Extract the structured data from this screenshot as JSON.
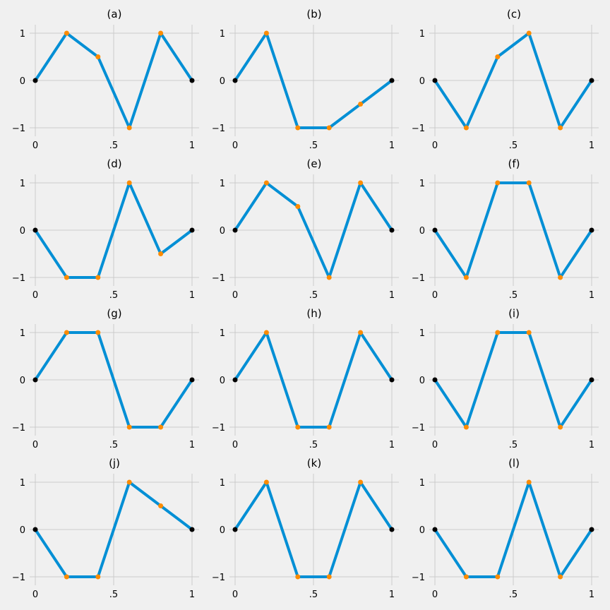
{
  "figure": {
    "background_color": "#f0f0f0",
    "grid_color": "#cbcbcb",
    "line_color": "#008fd5",
    "endpoint_marker_color": "#000000",
    "interior_marker_color": "#fc8b00"
  },
  "chart_data": [
    {
      "type": "line",
      "title": "(a)",
      "x": [
        0,
        0.2,
        0.4,
        0.6,
        0.8,
        1
      ],
      "y": [
        0,
        1,
        0.5,
        -1,
        1,
        0
      ],
      "xticks": [
        0,
        0.5,
        1
      ],
      "xtick_labels": [
        "0",
        ".5",
        "1"
      ],
      "yticks": [
        -1,
        0,
        1
      ],
      "ytick_labels": [
        "−1",
        "0",
        "1"
      ],
      "xlim": [
        -0.05,
        1.05
      ],
      "ylim": [
        -1.2,
        1.2
      ],
      "grid": true,
      "legend": "none"
    },
    {
      "type": "line",
      "title": "(b)",
      "x": [
        0,
        0.2,
        0.4,
        0.6,
        0.8,
        1
      ],
      "y": [
        0,
        1,
        -1,
        -1,
        -0.5,
        0
      ],
      "xticks": [
        0,
        0.5,
        1
      ],
      "xtick_labels": [
        "0",
        ".5",
        "1"
      ],
      "yticks": [
        -1,
        0,
        1
      ],
      "ytick_labels": [
        "−1",
        "0",
        "1"
      ],
      "xlim": [
        -0.05,
        1.05
      ],
      "ylim": [
        -1.2,
        1.2
      ],
      "grid": true,
      "legend": "none"
    },
    {
      "type": "line",
      "title": "(c)",
      "x": [
        0,
        0.2,
        0.4,
        0.6,
        0.8,
        1
      ],
      "y": [
        0,
        -1,
        0.5,
        1,
        -1,
        0
      ],
      "xticks": [
        0,
        0.5,
        1
      ],
      "xtick_labels": [
        "0",
        ".5",
        "1"
      ],
      "yticks": [
        -1,
        0,
        1
      ],
      "ytick_labels": [
        "−1",
        "0",
        "1"
      ],
      "xlim": [
        -0.05,
        1.05
      ],
      "ylim": [
        -1.2,
        1.2
      ],
      "grid": true,
      "legend": "none"
    },
    {
      "type": "line",
      "title": "(d)",
      "x": [
        0,
        0.2,
        0.4,
        0.6,
        0.8,
        1
      ],
      "y": [
        0,
        -1,
        -1,
        1,
        -0.5,
        0
      ],
      "xticks": [
        0,
        0.5,
        1
      ],
      "xtick_labels": [
        "0",
        ".5",
        "1"
      ],
      "yticks": [
        -1,
        0,
        1
      ],
      "ytick_labels": [
        "−1",
        "0",
        "1"
      ],
      "xlim": [
        -0.05,
        1.05
      ],
      "ylim": [
        -1.2,
        1.2
      ],
      "grid": true,
      "legend": "none"
    },
    {
      "type": "line",
      "title": "(e)",
      "x": [
        0,
        0.2,
        0.4,
        0.6,
        0.8,
        1
      ],
      "y": [
        0,
        1,
        0.5,
        -1,
        1,
        0
      ],
      "xticks": [
        0,
        0.5,
        1
      ],
      "xtick_labels": [
        "0",
        ".5",
        "1"
      ],
      "yticks": [
        -1,
        0,
        1
      ],
      "ytick_labels": [
        "−1",
        "0",
        "1"
      ],
      "xlim": [
        -0.05,
        1.05
      ],
      "ylim": [
        -1.2,
        1.2
      ],
      "grid": true,
      "legend": "none"
    },
    {
      "type": "line",
      "title": "(f)",
      "x": [
        0,
        0.2,
        0.4,
        0.6,
        0.8,
        1
      ],
      "y": [
        0,
        -1,
        1,
        1,
        -1,
        0
      ],
      "xticks": [
        0,
        0.5,
        1
      ],
      "xtick_labels": [
        "0",
        ".5",
        "1"
      ],
      "yticks": [
        -1,
        0,
        1
      ],
      "ytick_labels": [
        "−1",
        "0",
        "1"
      ],
      "xlim": [
        -0.05,
        1.05
      ],
      "ylim": [
        -1.2,
        1.2
      ],
      "grid": true,
      "legend": "none"
    },
    {
      "type": "line",
      "title": "(g)",
      "x": [
        0,
        0.2,
        0.4,
        0.6,
        0.8,
        1
      ],
      "y": [
        0,
        1,
        1,
        -1,
        -1,
        0
      ],
      "xticks": [
        0,
        0.5,
        1
      ],
      "xtick_labels": [
        "0",
        ".5",
        "1"
      ],
      "yticks": [
        -1,
        0,
        1
      ],
      "ytick_labels": [
        "−1",
        "0",
        "1"
      ],
      "xlim": [
        -0.05,
        1.05
      ],
      "ylim": [
        -1.2,
        1.2
      ],
      "grid": true,
      "legend": "none"
    },
    {
      "type": "line",
      "title": "(h)",
      "x": [
        0,
        0.2,
        0.4,
        0.6,
        0.8,
        1
      ],
      "y": [
        0,
        1,
        -1,
        -1,
        1,
        0
      ],
      "xticks": [
        0,
        0.5,
        1
      ],
      "xtick_labels": [
        "0",
        ".5",
        "1"
      ],
      "yticks": [
        -1,
        0,
        1
      ],
      "ytick_labels": [
        "−1",
        "0",
        "1"
      ],
      "xlim": [
        -0.05,
        1.05
      ],
      "ylim": [
        -1.2,
        1.2
      ],
      "grid": true,
      "legend": "none"
    },
    {
      "type": "line",
      "title": "(i)",
      "x": [
        0,
        0.2,
        0.4,
        0.6,
        0.8,
        1
      ],
      "y": [
        0,
        -1,
        1,
        1,
        -1,
        0
      ],
      "xticks": [
        0,
        0.5,
        1
      ],
      "xtick_labels": [
        "0",
        ".5",
        "1"
      ],
      "yticks": [
        -1,
        0,
        1
      ],
      "ytick_labels": [
        "−1",
        "0",
        "1"
      ],
      "xlim": [
        -0.05,
        1.05
      ],
      "ylim": [
        -1.2,
        1.2
      ],
      "grid": true,
      "legend": "none"
    },
    {
      "type": "line",
      "title": "(j)",
      "x": [
        0,
        0.2,
        0.4,
        0.6,
        0.8,
        1
      ],
      "y": [
        0,
        -1,
        -1,
        1,
        0.5,
        0
      ],
      "xticks": [
        0,
        0.5,
        1
      ],
      "xtick_labels": [
        "0",
        ".5",
        "1"
      ],
      "yticks": [
        -1,
        0,
        1
      ],
      "ytick_labels": [
        "−1",
        "0",
        "1"
      ],
      "xlim": [
        -0.05,
        1.05
      ],
      "ylim": [
        -1.2,
        1.2
      ],
      "grid": true,
      "legend": "none"
    },
    {
      "type": "line",
      "title": "(k)",
      "x": [
        0,
        0.2,
        0.4,
        0.6,
        0.8,
        1
      ],
      "y": [
        0,
        1,
        -1,
        -1,
        1,
        0
      ],
      "xticks": [
        0,
        0.5,
        1
      ],
      "xtick_labels": [
        "0",
        ".5",
        "1"
      ],
      "yticks": [
        -1,
        0,
        1
      ],
      "ytick_labels": [
        "−1",
        "0",
        "1"
      ],
      "xlim": [
        -0.05,
        1.05
      ],
      "ylim": [
        -1.2,
        1.2
      ],
      "grid": true,
      "legend": "none"
    },
    {
      "type": "line",
      "title": "(l)",
      "x": [
        0,
        0.2,
        0.4,
        0.6,
        0.8,
        1
      ],
      "y": [
        0,
        -1,
        -1,
        1,
        -1,
        0
      ],
      "xticks": [
        0,
        0.5,
        1
      ],
      "xtick_labels": [
        "0",
        ".5",
        "1"
      ],
      "yticks": [
        -1,
        0,
        1
      ],
      "ytick_labels": [
        "−1",
        "0",
        "1"
      ],
      "xlim": [
        -0.05,
        1.05
      ],
      "ylim": [
        -1.2,
        1.2
      ],
      "grid": true,
      "legend": "none"
    }
  ]
}
